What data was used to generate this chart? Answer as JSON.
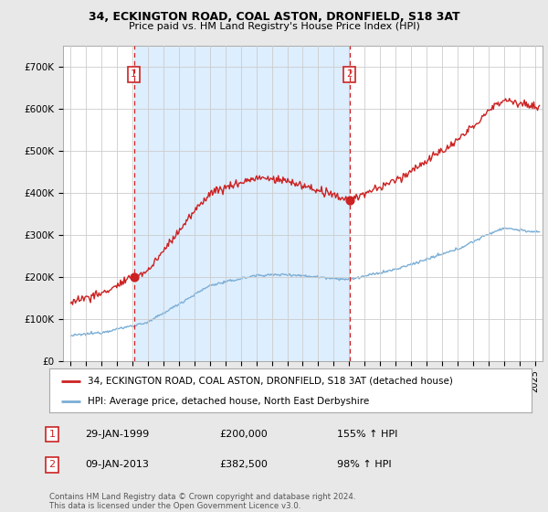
{
  "title_line1": "34, ECKINGTON ROAD, COAL ASTON, DRONFIELD, S18 3AT",
  "title_line2": "Price paid vs. HM Land Registry's House Price Index (HPI)",
  "background_color": "#e8e8e8",
  "plot_bg_color": "#ffffff",
  "shaded_bg_color": "#ddeeff",
  "red_line_color": "#cc2222",
  "blue_line_color": "#7aaed6",
  "sale1_date": 1999.08,
  "sale1_price": 200000,
  "sale2_date": 2013.03,
  "sale2_price": 382500,
  "vline_color": "#cc2222",
  "ylim_max": 750000,
  "yticks": [
    0,
    100000,
    200000,
    300000,
    400000,
    500000,
    600000,
    700000
  ],
  "ytick_labels": [
    "£0",
    "£100K",
    "£200K",
    "£300K",
    "£400K",
    "£500K",
    "£600K",
    "£700K"
  ],
  "legend_label_red": "34, ECKINGTON ROAD, COAL ASTON, DRONFIELD, S18 3AT (detached house)",
  "legend_label_blue": "HPI: Average price, detached house, North East Derbyshire",
  "annotation1_label": "1",
  "annotation1_date": "29-JAN-1999",
  "annotation1_price": "£200,000",
  "annotation1_hpi": "155% ↑ HPI",
  "annotation2_label": "2",
  "annotation2_date": "09-JAN-2013",
  "annotation2_price": "£382,500",
  "annotation2_hpi": "98% ↑ HPI",
  "footer": "Contains HM Land Registry data © Crown copyright and database right 2024.\nThis data is licensed under the Open Government Licence v3.0.",
  "xmin": 1994.5,
  "xmax": 2025.5
}
